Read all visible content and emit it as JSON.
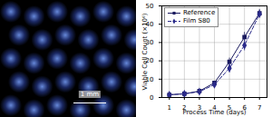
{
  "chart_data": {
    "type": "line",
    "xlabel": "Process Time (days)",
    "ylabel": "Viable Cell Count (×10⁶)",
    "x": [
      1,
      2,
      3,
      4,
      5,
      6,
      7
    ],
    "series": [
      {
        "name": "Reference",
        "color": "#1a1a5e",
        "marker": "square",
        "line_style": "solid",
        "values": [
          1.5,
          2.0,
          3.5,
          8.0,
          19.5,
          33.0,
          46.0
        ],
        "errors": [
          0.4,
          0.3,
          0.5,
          1.0,
          2.0,
          2.5,
          2.0
        ]
      },
      {
        "name": "Film S80",
        "color": "#2b2b8a",
        "marker": "diamond",
        "line_style": "dashed",
        "values": [
          1.5,
          2.0,
          3.2,
          7.0,
          16.0,
          28.5,
          45.5
        ],
        "errors": [
          0.4,
          0.3,
          0.5,
          1.0,
          2.5,
          3.0,
          2.0
        ]
      }
    ],
    "xlim": [
      0.5,
      7.5
    ],
    "xticks": [
      1,
      2,
      3,
      4,
      5,
      6,
      7
    ],
    "ylim": [
      0,
      50
    ],
    "yticks": [
      0,
      10,
      20,
      30,
      40,
      50
    ],
    "grid": true,
    "legend": "upper left",
    "annotations": [
      "1 mm"
    ]
  }
}
